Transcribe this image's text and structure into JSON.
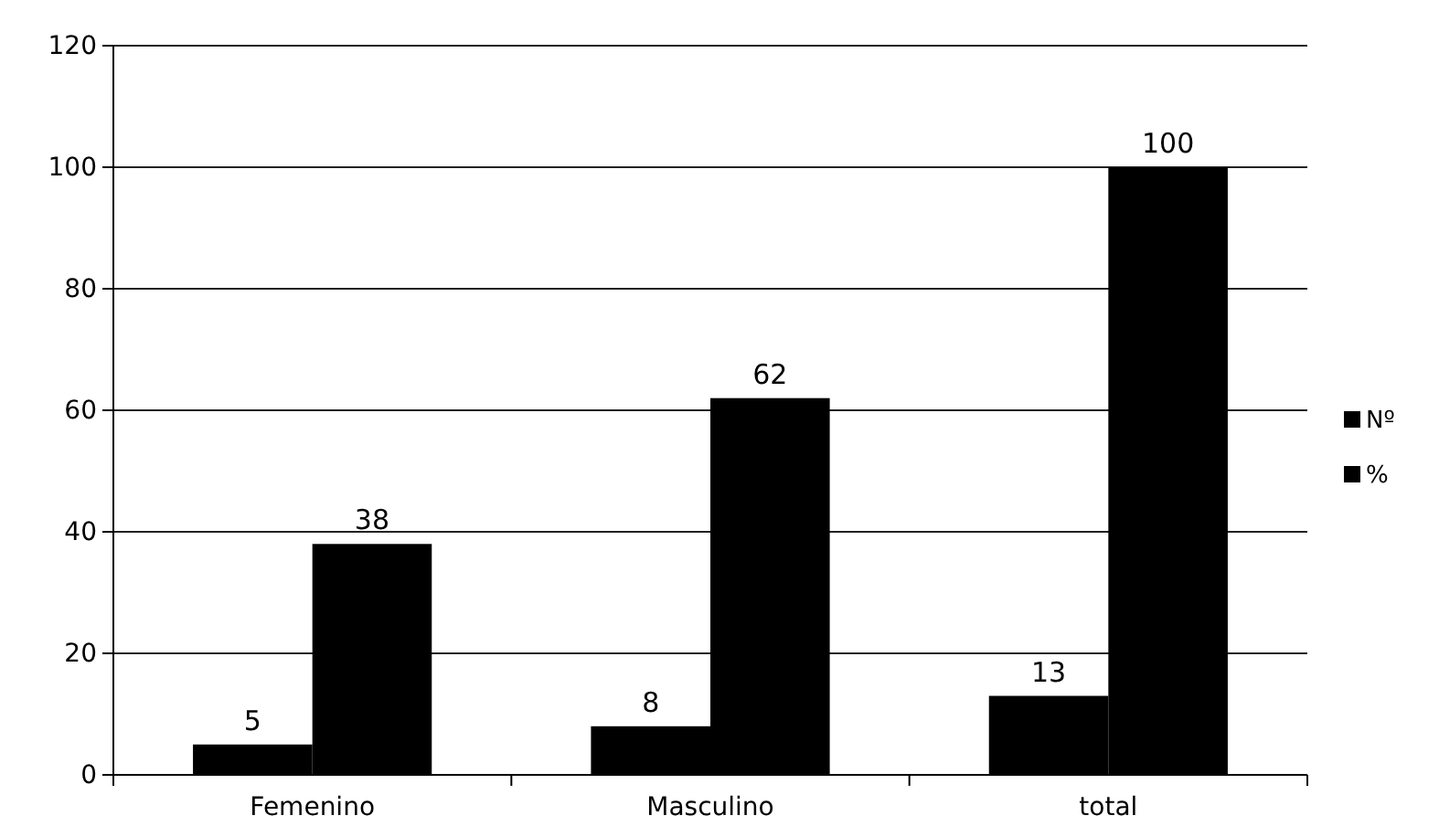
{
  "chart_data": {
    "type": "bar",
    "categories": [
      "Femenino",
      "Masculino",
      "total"
    ],
    "series": [
      {
        "name": "Nº",
        "color": "#000000",
        "values": [
          5,
          8,
          13
        ]
      },
      {
        "name": "%",
        "color": "#000000",
        "values": [
          38,
          62,
          100
        ]
      }
    ],
    "ylim": [
      0,
      120
    ],
    "yticks": [
      0,
      20,
      40,
      60,
      80,
      100,
      120
    ],
    "grid": "y",
    "legend": "right",
    "data_labels": true
  }
}
